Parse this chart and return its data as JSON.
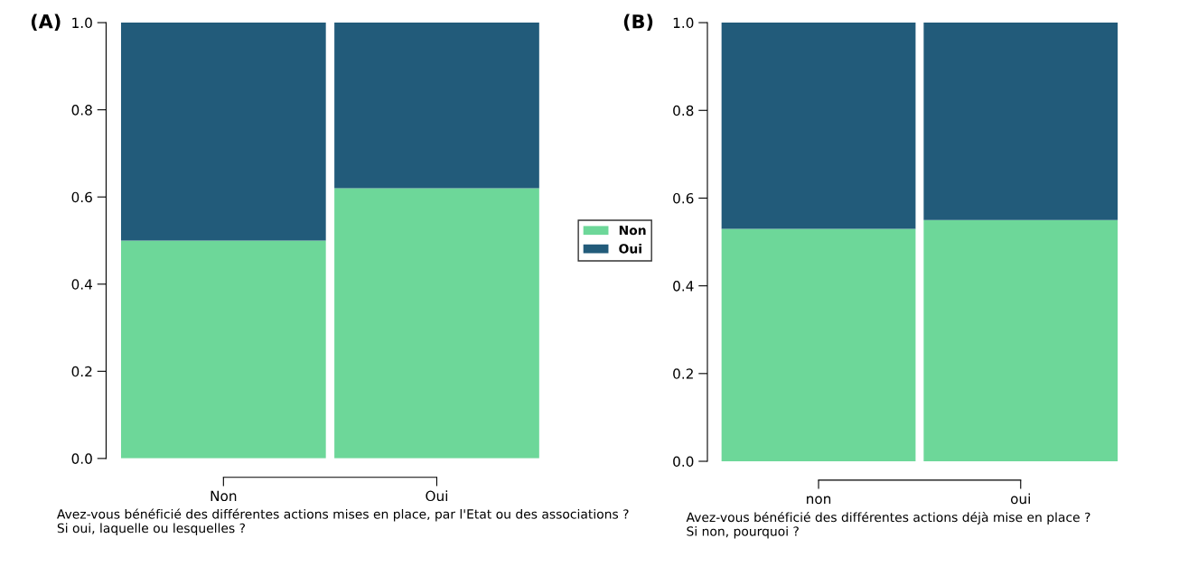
{
  "chart_data": [
    {
      "type": "bar",
      "title": "(A)",
      "stacked": true,
      "categories": [
        "Non",
        "Oui"
      ],
      "xlabel": "Avez-vous bénéficié des différentes actions mises en place, par l'Etat ou des associations ?\nSi oui, laquelle ou lesquelles ?",
      "series": [
        {
          "name": "Non",
          "color": "#6dd799",
          "values": [
            0.5,
            0.62
          ]
        },
        {
          "name": "Oui",
          "color": "#225b7a",
          "values": [
            0.5,
            0.38
          ]
        }
      ],
      "ylim": [
        0,
        1
      ],
      "yticks": [
        {
          "value": 0,
          "label": "0.0"
        },
        {
          "value": 0.2,
          "label": "0.2"
        },
        {
          "value": 0.4,
          "label": "0.4"
        },
        {
          "value": 0.6,
          "label": "0.6"
        },
        {
          "value": 0.8,
          "label": "0.8"
        },
        {
          "value": 1,
          "label": "1.0"
        }
      ],
      "grid": false,
      "legend": "right"
    },
    {
      "type": "bar",
      "title": "(B)",
      "stacked": true,
      "categories": [
        "non",
        "oui"
      ],
      "xlabel": "Avez-vous bénéficié des différentes actions déjà mise en place ?\nSi non, pourquoi ?",
      "series": [
        {
          "color": "#6dd799",
          "values": [
            0.53,
            0.55
          ]
        },
        {
          "color": "#225b7a",
          "values": [
            0.47,
            0.45
          ]
        }
      ],
      "ylim": [
        0,
        1
      ],
      "yticks": [
        {
          "value": 0,
          "label": "0.0"
        },
        {
          "value": 0.2,
          "label": "0.2"
        },
        {
          "value": 0.4,
          "label": "0.4"
        },
        {
          "value": 0.6,
          "label": "0.6"
        },
        {
          "value": 0.8,
          "label": "0.8"
        },
        {
          "value": 1,
          "label": "1.0"
        }
      ],
      "grid": false
    }
  ]
}
